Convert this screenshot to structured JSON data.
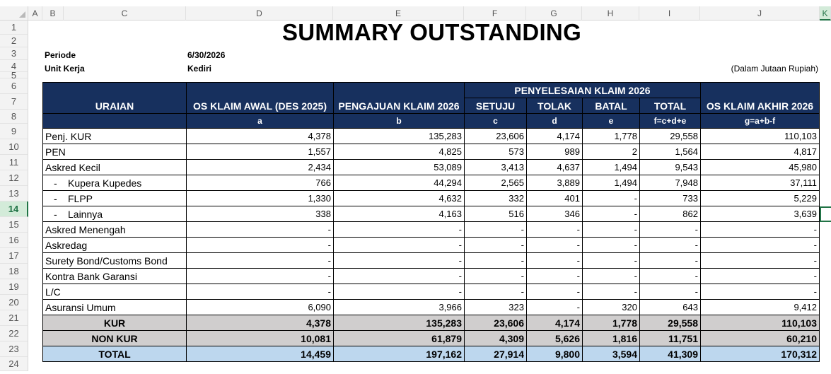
{
  "column_headers": [
    "A",
    "B",
    "C",
    "D",
    "E",
    "F",
    "G",
    "H",
    "I",
    "J",
    "K"
  ],
  "row_numbers": [
    "1",
    "2",
    "3",
    "4",
    "5",
    "6",
    "7",
    "8",
    "9",
    "10",
    "11",
    "12",
    "13",
    "14",
    "15",
    "16",
    "17",
    "18",
    "19",
    "20",
    "21",
    "22",
    "23",
    "24"
  ],
  "selected_row": "14",
  "selected_column": "K",
  "title": "SUMMARY OUTSTANDING",
  "periode_label": "Periode",
  "periode_value": "6/30/2026",
  "unit_label": "Unit Kerja",
  "unit_value": "Kediri",
  "unit_note": "(Dalam Jutaan Rupiah)",
  "header": {
    "uraian": "URAIAN",
    "os_awal": "OS KLAIM AWAL  (DES 2025)",
    "pengajuan": "PENGAJUAN KLAIM 2026",
    "penyelesaian": "PENYELESAIAN KLAIM 2026",
    "setuju": "SETUJU",
    "tolak": "TOLAK",
    "batal": "BATAL",
    "total": "TOTAL",
    "os_akhir": "OS KLAIM AKHIR  2026",
    "code_a": "a",
    "code_b": "b",
    "code_c": "c",
    "code_d": "d",
    "code_e": "e",
    "code_f": "f=c+d+e",
    "code_g": "g=a+b-f"
  },
  "rows": [
    {
      "label": "Penj. KUR",
      "indent": false,
      "values": [
        "4,378",
        "135,283",
        "23,606",
        "4,174",
        "1,778",
        "29,558",
        "110,103"
      ]
    },
    {
      "label": "PEN",
      "indent": false,
      "values": [
        "1,557",
        "4,825",
        "573",
        "989",
        "2",
        "1,564",
        "4,817"
      ]
    },
    {
      "label": "Askred Kecil",
      "indent": false,
      "values": [
        "2,434",
        "53,089",
        "3,413",
        "4,637",
        "1,494",
        "9,543",
        "45,980"
      ]
    },
    {
      "label": "Kupera Kupedes",
      "indent": true,
      "values": [
        "766",
        "44,294",
        "2,565",
        "3,889",
        "1,494",
        "7,948",
        "37,111"
      ]
    },
    {
      "label": "FLPP",
      "indent": true,
      "values": [
        "1,330",
        "4,632",
        "332",
        "401",
        "-",
        "733",
        "5,229"
      ]
    },
    {
      "label": "Lainnya",
      "indent": true,
      "values": [
        "338",
        "4,163",
        "516",
        "346",
        "-",
        "862",
        "3,639"
      ]
    },
    {
      "label": "Askred Menengah",
      "indent": false,
      "values": [
        "-",
        "-",
        "-",
        "-",
        "-",
        "-",
        "-"
      ]
    },
    {
      "label": "Askredag",
      "indent": false,
      "values": [
        "-",
        "-",
        "-",
        "-",
        "-",
        "-",
        "-"
      ]
    },
    {
      "label": "Surety Bond/Customs Bond",
      "indent": false,
      "values": [
        "-",
        "-",
        "-",
        "-",
        "-",
        "-",
        "-"
      ]
    },
    {
      "label": "Kontra Bank Garansi",
      "indent": false,
      "values": [
        "-",
        "-",
        "-",
        "-",
        "-",
        "-",
        "-"
      ]
    },
    {
      "label": "L/C",
      "indent": false,
      "values": [
        "-",
        "-",
        "-",
        "-",
        "-",
        "-",
        "-"
      ]
    },
    {
      "label": "Asuransi Umum",
      "indent": false,
      "values": [
        "6,090",
        "3,966",
        "323",
        "-",
        "320",
        "643",
        "9,412"
      ]
    }
  ],
  "summary": [
    {
      "label": "KUR",
      "style": "sum",
      "values": [
        "4,378",
        "135,283",
        "23,606",
        "4,174",
        "1,778",
        "29,558",
        "110,103"
      ]
    },
    {
      "label": "NON KUR",
      "style": "sum",
      "values": [
        "10,081",
        "61,879",
        "4,309",
        "5,626",
        "1,816",
        "11,751",
        "60,210"
      ]
    },
    {
      "label": "TOTAL",
      "style": "tot",
      "values": [
        "14,459",
        "197,162",
        "27,914",
        "9,800",
        "3,594",
        "41,309",
        "170,312"
      ]
    }
  ],
  "indent_dash": "-"
}
